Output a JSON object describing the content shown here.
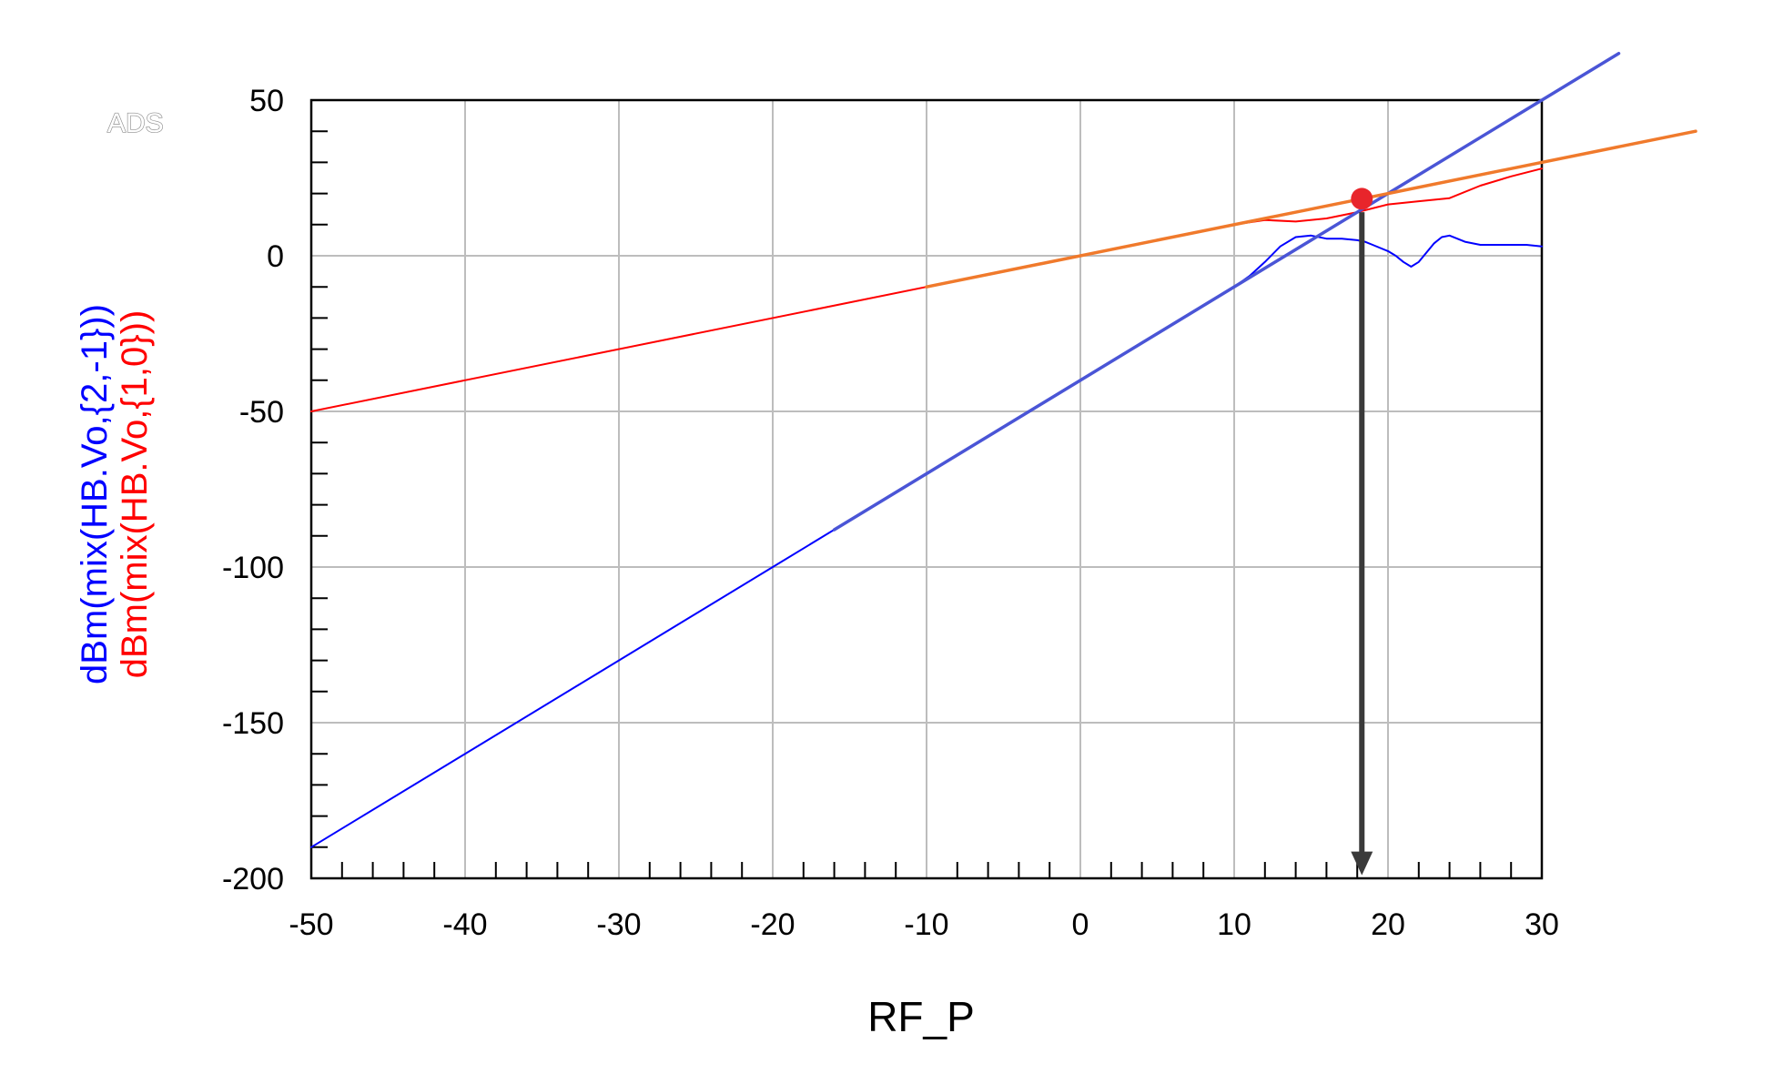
{
  "watermark": "ADS",
  "chart_data": {
    "type": "line",
    "xlabel": "RF_P",
    "ylabels": [
      {
        "text": "dBm(mix(HB.Vo,{2,-1}))",
        "color": "#0000ff"
      },
      {
        "text": "dBm(mix(HB.Vo,{1,0}))",
        "color": "#ff0000"
      }
    ],
    "xlim": [
      -50,
      30
    ],
    "ylim": [
      -200,
      50
    ],
    "xticks": [
      -50,
      -40,
      -30,
      -20,
      -10,
      0,
      10,
      20,
      30
    ],
    "yticks": [
      -200,
      -150,
      -100,
      -50,
      0,
      50
    ],
    "xtick_labels": [
      "-50",
      "-40",
      "-30",
      "-20",
      "-10",
      "0",
      "10",
      "20",
      "30"
    ],
    "ytick_labels": [
      "-200",
      "-150",
      "-100",
      "-50",
      "0",
      "50"
    ],
    "grid": true,
    "series": [
      {
        "id": "im3-measured",
        "color": "#0000ff",
        "width": 2,
        "x": [
          -50,
          -20,
          0,
          8,
          10,
          11,
          12,
          13,
          14,
          15,
          16,
          17,
          18,
          18.5,
          19,
          20,
          20.5,
          21,
          21.5,
          22,
          23,
          23.5,
          24,
          25,
          26,
          27,
          28,
          29,
          30
        ],
        "y": [
          -190,
          -100,
          -40,
          -16,
          -10,
          -6.5,
          -2,
          3,
          6,
          6.5,
          5.5,
          5.5,
          5,
          4.5,
          3.5,
          1.5,
          0,
          -2,
          -3.5,
          -2,
          4,
          6,
          6.5,
          4.5,
          3.5,
          3.5,
          3.5,
          3.5,
          3
        ]
      },
      {
        "id": "fund-measured",
        "color": "#ff0000",
        "width": 2,
        "x": [
          -50,
          0,
          10,
          12,
          14,
          16,
          18,
          20,
          22,
          24,
          26,
          28,
          30
        ],
        "y": [
          -50,
          0,
          10,
          11.5,
          11,
          12,
          14,
          16.5,
          17.5,
          18.5,
          22.5,
          25.5,
          28
        ]
      },
      {
        "id": "im3-extrapolation",
        "color": "#4a55d6",
        "width": 3.5,
        "x": [
          -16,
          35
        ],
        "y": [
          -88,
          65
        ]
      },
      {
        "id": "fund-extrapolation",
        "color": "#f07a2c",
        "width": 3.5,
        "x": [
          -10,
          40
        ],
        "y": [
          -10,
          40
        ]
      }
    ],
    "intercept_point": {
      "x": 18.3,
      "y": 18.3,
      "color": "#e8252b"
    },
    "arrow": {
      "x": 18.3,
      "from_y": 14,
      "to_y": -199,
      "color": "#3a3a3a"
    }
  }
}
